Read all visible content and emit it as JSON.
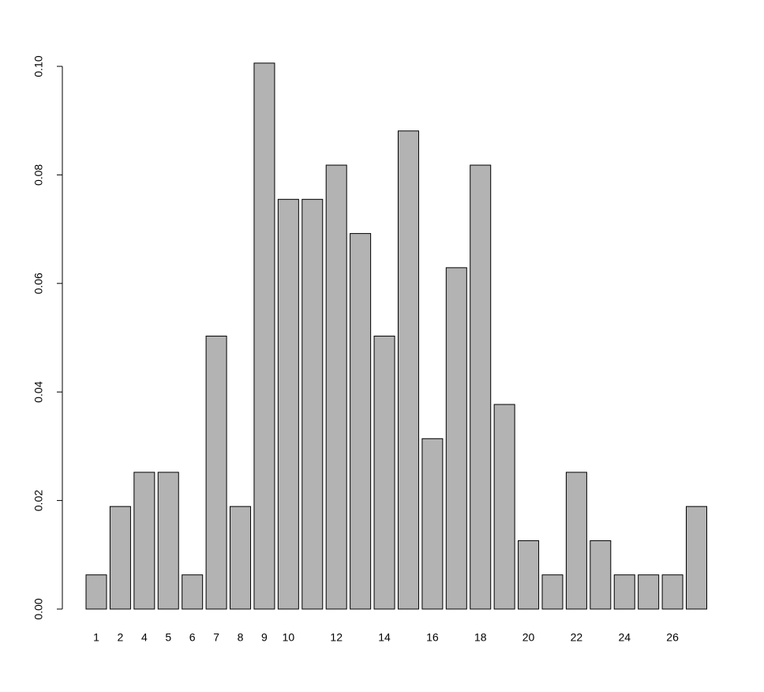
{
  "chart_data": {
    "type": "bar",
    "categories": [
      "1",
      "2",
      "4",
      "5",
      "6",
      "7",
      "8",
      "9",
      "10",
      null,
      "12",
      null,
      "14",
      null,
      "16",
      null,
      "18",
      null,
      "20",
      null,
      "22",
      null,
      "24",
      null,
      "26",
      null
    ],
    "values": [
      0.0063,
      0.0189,
      0.0252,
      0.0252,
      0.0063,
      0.0503,
      0.0189,
      0.1006,
      0.0755,
      0.0755,
      0.0818,
      0.0692,
      0.0503,
      0.0881,
      0.0314,
      0.0629,
      0.0818,
      0.0377,
      0.0126,
      0.0063,
      0.0252,
      0.0126,
      0.0063,
      0.0063,
      0.0063,
      0.0189
    ],
    "color": "#b3b3b3",
    "ylim": [
      0,
      0.1
    ],
    "yticks": [
      {
        "value": 0,
        "label": "0.00"
      },
      {
        "value": 0.02,
        "label": "0.02"
      },
      {
        "value": 0.04,
        "label": "0.04"
      },
      {
        "value": 0.06,
        "label": "0.06"
      },
      {
        "value": 0.08,
        "label": "0.08"
      },
      {
        "value": 0.1,
        "label": "0.10"
      }
    ]
  }
}
